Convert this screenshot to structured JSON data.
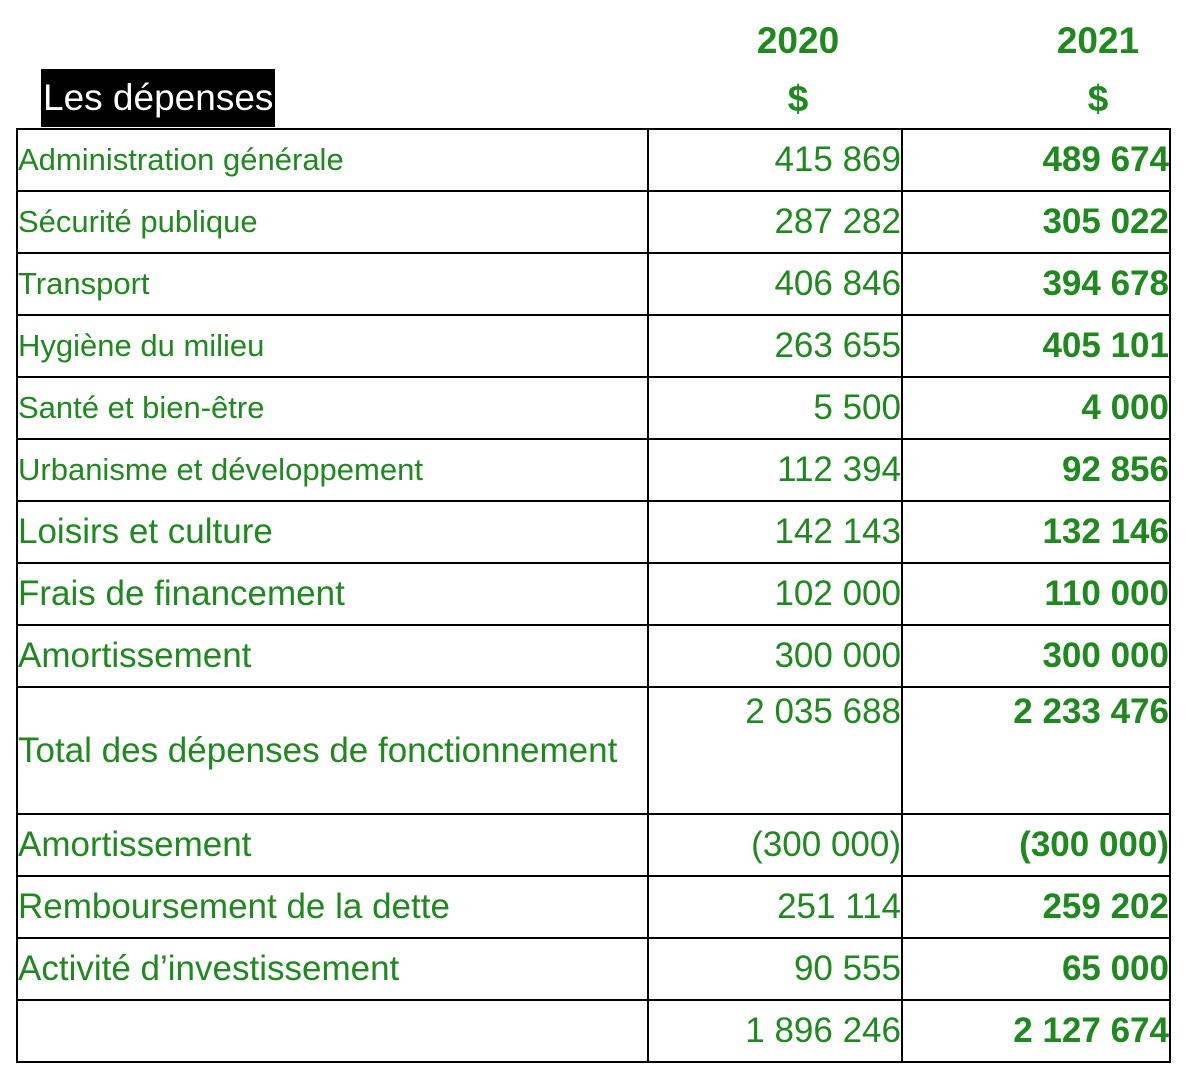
{
  "header": {
    "title": "Les dépenses",
    "col_2020": {
      "year": "2020",
      "currency": "$"
    },
    "col_2021": {
      "year": "2021",
      "currency": "$"
    }
  },
  "rows": [
    {
      "label": "Administration générale",
      "v2020": "415 869",
      "v2021": "489 674"
    },
    {
      "label": "Sécurité publique",
      "v2020": "287 282",
      "v2021": "305 022"
    },
    {
      "label": "Transport",
      "v2020": "406 846",
      "v2021": "394 678"
    },
    {
      "label": "Hygiène du milieu",
      "v2020": "263 655",
      "v2021": "405 101"
    },
    {
      "label": "Santé et bien-être",
      "v2020": "5 500",
      "v2021": "4 000"
    },
    {
      "label": "Urbanisme et développement",
      "v2020": "112 394",
      "v2021": "92 856"
    },
    {
      "label": "Loisirs et culture",
      "v2020": "142 143",
      "v2021": "132 146"
    },
    {
      "label": "Frais de financement",
      "v2020": "102 000",
      "v2021": "110 000"
    },
    {
      "label": "Amortissement",
      "v2020": "300 000",
      "v2021": "300 000"
    },
    {
      "label": "Total des dépenses de fonctionnement",
      "v2020": "2 035 688",
      "v2021": "2 233 476"
    },
    {
      "label": "Amortissement",
      "v2020": "(300 000)",
      "v2021": "(300 000)"
    },
    {
      "label": "Remboursement de la dette",
      "v2020": "251 114",
      "v2021": "259 202"
    },
    {
      "label": "Activité d’investissement",
      "v2020": "90 555",
      "v2021": "65 000"
    },
    {
      "label": "",
      "v2020": "1 896 246",
      "v2021": "2 127 674"
    }
  ],
  "colors": {
    "text_green": "#1e8a1e",
    "title_bg": "#000000",
    "title_fg": "#ffffff",
    "border": "#000000"
  }
}
